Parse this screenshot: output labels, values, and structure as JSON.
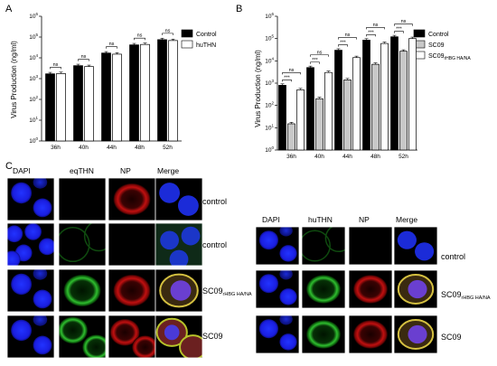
{
  "panels": {
    "a": "A",
    "b": "B",
    "c": "C"
  },
  "chart_data": [
    {
      "type": "bar",
      "panel": "A",
      "ylabel": "Virus Production (ng/ml)",
      "scale": "log",
      "ylim": [
        1,
        1000000
      ],
      "y_ticks": [
        {
          "value": 1,
          "base": "10",
          "exp": "0"
        },
        {
          "value": 10,
          "base": "10",
          "exp": "1"
        },
        {
          "value": 100,
          "base": "10",
          "exp": "2"
        },
        {
          "value": 1000,
          "base": "10",
          "exp": "3"
        },
        {
          "value": 10000,
          "base": "10",
          "exp": "4"
        },
        {
          "value": 100000,
          "base": "10",
          "exp": "5"
        },
        {
          "value": 1000000,
          "base": "10",
          "exp": "6"
        }
      ],
      "categories": [
        "36h",
        "40h",
        "44h",
        "48h",
        "52h"
      ],
      "series": [
        {
          "name": "Control",
          "color": "#000000",
          "values": [
            1700,
            4200,
            17000,
            42000,
            75000
          ]
        },
        {
          "name": "huTHN",
          "color": "#ffffff",
          "values": [
            1750,
            3800,
            15000,
            44000,
            68000
          ]
        }
      ],
      "annotations": [
        "ns",
        "ns",
        "ns",
        "ns",
        "ns"
      ],
      "legend_position": "top-right"
    },
    {
      "type": "bar",
      "panel": "B",
      "ylabel": "Virus Production (ng/ml)",
      "scale": "log",
      "ylim": [
        1,
        1000000
      ],
      "y_ticks": [
        {
          "value": 1,
          "base": "10",
          "exp": "0"
        },
        {
          "value": 10,
          "base": "10",
          "exp": "1"
        },
        {
          "value": 100,
          "base": "10",
          "exp": "2"
        },
        {
          "value": 1000,
          "base": "10",
          "exp": "3"
        },
        {
          "value": 10000,
          "base": "10",
          "exp": "4"
        },
        {
          "value": 100000,
          "base": "10",
          "exp": "5"
        },
        {
          "value": 1000000,
          "base": "10",
          "exp": "6"
        }
      ],
      "categories": [
        "36h",
        "40h",
        "44h",
        "48h",
        "52h"
      ],
      "series": [
        {
          "name": "Control",
          "color": "#000000",
          "values": [
            800,
            5000,
            30000,
            85000,
            120000
          ]
        },
        {
          "name": "SC09",
          "color": "#c8c8c8",
          "values": [
            15,
            200,
            1400,
            7000,
            27000
          ]
        },
        {
          "name": "SC09",
          "name_sub": "rHBG HA/NA",
          "color": "#ffffff",
          "values": [
            500,
            3000,
            14000,
            60000,
            100000
          ]
        }
      ],
      "annotations": [
        {
          "top": "ns",
          "bottom": "***"
        },
        {
          "top": "ns",
          "bottom": "***"
        },
        {
          "top": "ns",
          "bottom": "***"
        },
        {
          "top": "ns",
          "bottom": "***"
        },
        {
          "top": "ns",
          "bottom": "***"
        }
      ],
      "legend_position": "top-right"
    }
  ],
  "micro_left": {
    "headers": [
      "DAPI",
      "eqTHN",
      "NP",
      "Merge"
    ],
    "rows": [
      {
        "label": "control",
        "sub": ""
      },
      {
        "label": "control",
        "sub": ""
      },
      {
        "label": "SC09",
        "sub": "rHBG HA/NA"
      },
      {
        "label": "SC09",
        "sub": ""
      }
    ]
  },
  "micro_right": {
    "headers": [
      "DAPI",
      "huTHN",
      "NP",
      "Merge"
    ],
    "rows": [
      {
        "label": "control",
        "sub": ""
      },
      {
        "label": "SC09",
        "sub": "rHBG HA/NA"
      },
      {
        "label": "SC09",
        "sub": ""
      }
    ]
  }
}
